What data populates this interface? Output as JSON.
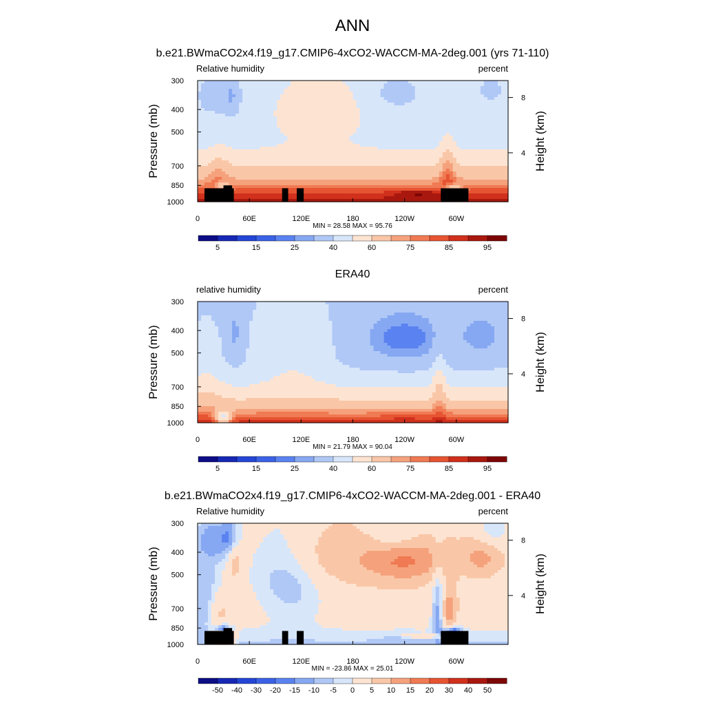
{
  "figure_title": "ANN",
  "chart_data": [
    {
      "type": "heatmap",
      "title": "b.e21.BWmaCO2x4.f19_g17.CMIP6-4xCO2-WACCM-MA-2deg.001 (yrs 71-110)",
      "left_label": "Relative humidity",
      "right_label": "percent",
      "ylabel": "Pressure (mb)",
      "ylabel_right": "Height (km)",
      "xlabel": "",
      "x_ticks": [
        "0",
        "60E",
        "120E",
        "180",
        "120W",
        "60W"
      ],
      "x_tick_lons": [
        0,
        60,
        120,
        180,
        240,
        300
      ],
      "xlim": [
        0,
        360
      ],
      "y_ticks": [
        "300",
        "400",
        "500",
        "700",
        "850",
        "1000"
      ],
      "y_tick_values": [
        300,
        400,
        500,
        700,
        850,
        1000
      ],
      "ylim": [
        1000,
        300
      ],
      "height_ticks": [
        "8",
        "4"
      ],
      "height_tick_pressures": [
        355,
        615
      ],
      "stats": "MIN = 28.58  MAX = 95.76",
      "min": 28.58,
      "max": 95.76,
      "colorbar_labels": [
        "5",
        "15",
        "25",
        "40",
        "60",
        "75",
        "85",
        "95"
      ],
      "colorbar_levels": [
        5,
        10,
        15,
        20,
        25,
        30,
        40,
        50,
        60,
        70,
        75,
        80,
        85,
        90,
        95
      ],
      "palette": "rh",
      "field": "model",
      "topography": true
    },
    {
      "type": "heatmap",
      "title": "ERA40",
      "left_label": "relative humidity",
      "right_label": "percent",
      "ylabel": "Pressure (mb)",
      "ylabel_right": "Height (km)",
      "xlabel": "",
      "x_ticks": [
        "0",
        "60E",
        "120E",
        "180",
        "120W",
        "60W"
      ],
      "x_tick_lons": [
        0,
        60,
        120,
        180,
        240,
        300
      ],
      "xlim": [
        0,
        360
      ],
      "y_ticks": [
        "300",
        "400",
        "500",
        "700",
        "850",
        "1000"
      ],
      "y_tick_values": [
        300,
        400,
        500,
        700,
        850,
        1000
      ],
      "ylim": [
        1000,
        300
      ],
      "height_ticks": [
        "8",
        "4"
      ],
      "height_tick_pressures": [
        355,
        615
      ],
      "stats": "MIN = 21.79  MAX = 90.04",
      "min": 21.79,
      "max": 90.04,
      "colorbar_labels": [
        "5",
        "15",
        "25",
        "40",
        "60",
        "75",
        "85",
        "95"
      ],
      "colorbar_levels": [
        5,
        10,
        15,
        20,
        25,
        30,
        40,
        50,
        60,
        70,
        75,
        80,
        85,
        90,
        95
      ],
      "palette": "rh",
      "field": "obs",
      "topography": false
    },
    {
      "type": "heatmap",
      "title": "b.e21.BWmaCO2x4.f19_g17.CMIP6-4xCO2-WACCM-MA-2deg.001 - ERA40",
      "left_label": "Relative humidity",
      "right_label": "percent",
      "ylabel": "Pressure (mb)",
      "ylabel_right": "Height (km)",
      "xlabel": "",
      "x_ticks": [
        "0",
        "60E",
        "120E",
        "180",
        "120W",
        "60W"
      ],
      "x_tick_lons": [
        0,
        60,
        120,
        180,
        240,
        300
      ],
      "xlim": [
        0,
        360
      ],
      "y_ticks": [
        "300",
        "400",
        "500",
        "700",
        "850",
        "1000"
      ],
      "y_tick_values": [
        300,
        400,
        500,
        700,
        850,
        1000
      ],
      "ylim": [
        1000,
        300
      ],
      "height_ticks": [
        "8",
        "4"
      ],
      "height_tick_pressures": [
        355,
        615
      ],
      "stats": "MIN = -23.86  MAX = 25.01",
      "min": -23.86,
      "max": 25.01,
      "colorbar_labels": [
        "-50",
        "-40",
        "-30",
        "-20",
        "-15",
        "-10",
        "-5",
        "0",
        "5",
        "10",
        "15",
        "20",
        "30",
        "40",
        "50"
      ],
      "colorbar_levels": [
        -50,
        -40,
        -30,
        -20,
        -15,
        -10,
        -5,
        0,
        5,
        10,
        15,
        20,
        30,
        40,
        50
      ],
      "palette": "diff",
      "field": "diff",
      "topography": true
    }
  ],
  "colors": {
    "rh_palette": [
      "#0d0d86",
      "#1628b4",
      "#2446d6",
      "#3b62e6",
      "#5a82f0",
      "#86a8f2",
      "#b0c8f6",
      "#d8e6fa",
      "#fde4d2",
      "#f9c7a8",
      "#f5a27c",
      "#f07a53",
      "#e65432",
      "#d0301c",
      "#a8180e",
      "#7d0606"
    ],
    "diff_palette": [
      "#0d0d86",
      "#1628b4",
      "#2446d6",
      "#3b62e6",
      "#5a82f0",
      "#86a8f2",
      "#b0c8f6",
      "#d8e6fa",
      "#fde4d2",
      "#f9c7a8",
      "#f5a27c",
      "#f07a53",
      "#e65432",
      "#d0301c",
      "#a8180e",
      "#7d0606"
    ],
    "topography": "#000000"
  }
}
